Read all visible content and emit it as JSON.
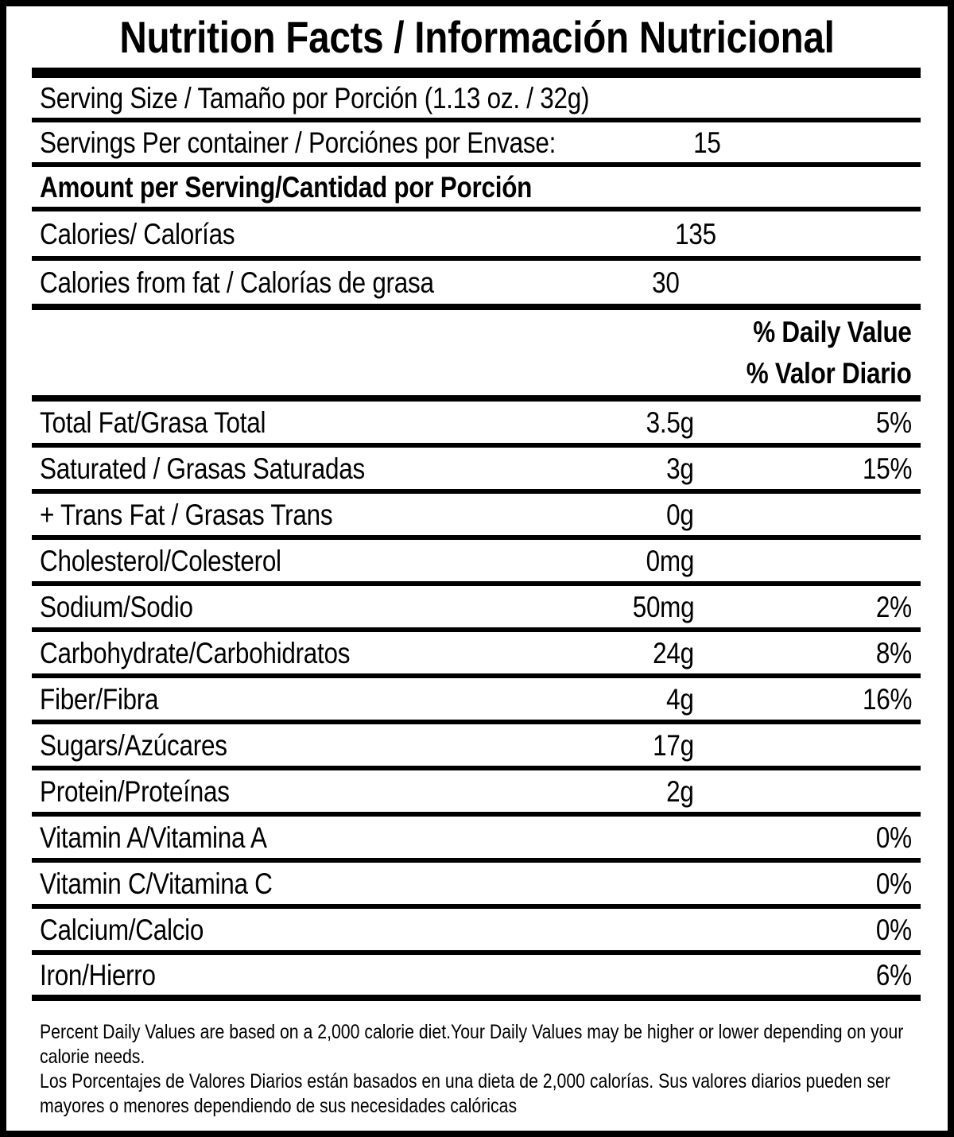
{
  "label": {
    "title": "Nutrition Facts / Información Nutricional",
    "serving": {
      "serving_size": "Serving Size / Tamaño por Porción (1.13 oz. / 32g)",
      "servings_per_container_label": "Servings Per container / Porciónes por Envase:",
      "servings_per_container_value": "15"
    },
    "amount_per_serving_heading": "Amount per Serving/Cantidad por Porción",
    "calories": {
      "label": "Calories/ Calorías",
      "value": "135"
    },
    "calories_from_fat": {
      "label": "Calories from fat / Calorías de grasa",
      "value": "30"
    },
    "daily_value_header": {
      "en": "% Daily Value",
      "es": "% Valor Diario"
    },
    "nutrients": [
      {
        "label": "Total Fat/Grasa Total",
        "amount": "3.5g",
        "daily_value": "5%"
      },
      {
        "label": "Saturated / Grasas Saturadas",
        "amount": "3g",
        "daily_value": "15%"
      },
      {
        "label": "+ Trans Fat / Grasas Trans",
        "amount": "0g",
        "daily_value": ""
      },
      {
        "label": "Cholesterol/Colesterol",
        "amount": "0mg",
        "daily_value": ""
      },
      {
        "label": "Sodium/Sodio",
        "amount": "50mg",
        "daily_value": "2%"
      },
      {
        "label": "Carbohydrate/Carbohidratos",
        "amount": "24g",
        "daily_value": "8%"
      },
      {
        "label": "Fiber/Fibra",
        "amount": "4g",
        "daily_value": "16%"
      },
      {
        "label": "Sugars/Azúcares",
        "amount": "17g",
        "daily_value": ""
      },
      {
        "label": "Protein/Proteínas",
        "amount": "2g",
        "daily_value": ""
      },
      {
        "label": "Vitamin A/Vitamina A",
        "amount": "",
        "daily_value": "0%"
      },
      {
        "label": "Vitamin C/Vitamina C",
        "amount": "",
        "daily_value": "0%"
      },
      {
        "label": "Calcium/Calcio",
        "amount": "",
        "daily_value": "0%"
      },
      {
        "label": "Iron/Hierro",
        "amount": "",
        "daily_value": "6%"
      }
    ],
    "footnotes": {
      "en": "Percent Daily Values are based on a 2,000 calorie diet.Your Daily Values may be higher or lower depending on your calorie needs.",
      "es": "Los Porcentajes de Valores Diarios están basados en una dieta de 2,000 calorías. Sus valores diarios pueden ser mayores o menores dependiendo de sus necesidades calóricas"
    },
    "colors": {
      "ink": "#000000",
      "background": "#ffffff"
    }
  }
}
